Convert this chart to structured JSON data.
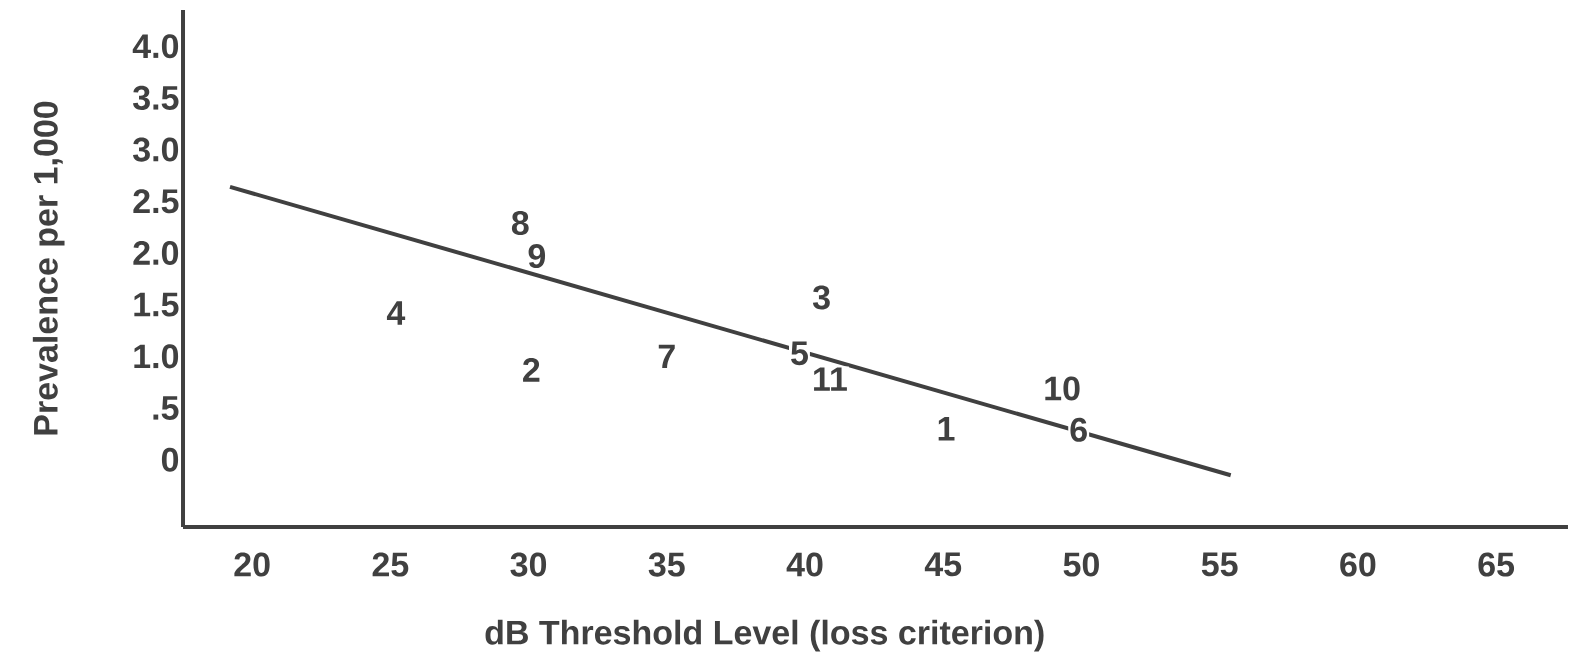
{
  "chart_data": {
    "type": "line",
    "xlabel": "dB Threshold Level (loss criterion)",
    "ylabel": "Prevalence per 1,000",
    "xlim": [
      17.5,
      67.6
    ],
    "ylim": [
      -0.65,
      4.35
    ],
    "xticks": [
      20,
      25,
      30,
      35,
      40,
      45,
      50,
      55,
      60,
      65
    ],
    "yticks": [
      0,
      {
        "value": 0.5,
        "label": ".5"
      },
      {
        "value": 1,
        "label": "1.0"
      },
      {
        "value": 1.5,
        "label": "1.5"
      },
      {
        "value": 2,
        "label": "2.0"
      },
      {
        "value": 2.5,
        "label": "2.5"
      },
      {
        "value": 3,
        "label": "3.0"
      },
      {
        "value": 3.5,
        "label": "3.5"
      },
      {
        "value": 4,
        "label": "4.0"
      }
    ],
    "grid": false,
    "series": [
      {
        "color": "#404040",
        "line_style": "solid",
        "x": [
          19.2,
          55.4
        ],
        "values": [
          2.64,
          -0.15
        ]
      }
    ],
    "annotations": [
      {
        "text": "1",
        "x": 45.1,
        "y": 0.3
      },
      {
        "text": "2",
        "x": 30.1,
        "y": 0.87
      },
      {
        "text": "3",
        "x": 40.6,
        "y": 1.57
      },
      {
        "text": "4",
        "x": 25.2,
        "y": 1.42
      },
      {
        "text": "5",
        "x": 39.8,
        "y": 1.03
      },
      {
        "text": "6",
        "x": 49.9,
        "y": 0.29
      },
      {
        "text": "7",
        "x": 35.0,
        "y": 1.0
      },
      {
        "text": "8",
        "x": 29.7,
        "y": 2.29
      },
      {
        "text": "9",
        "x": 30.3,
        "y": 1.97
      },
      {
        "text": "10",
        "x": 49.3,
        "y": 0.69
      },
      {
        "text": "11",
        "x": 40.9,
        "y": 0.78
      }
    ]
  }
}
